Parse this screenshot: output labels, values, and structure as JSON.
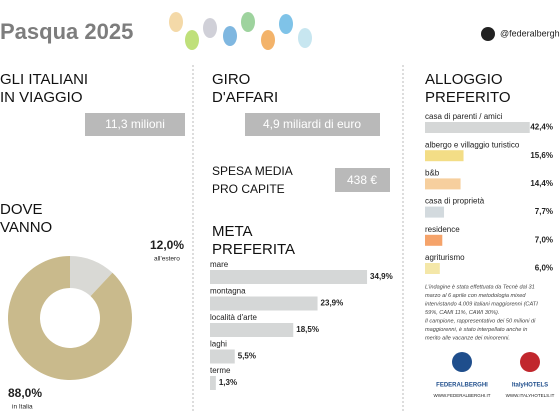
{
  "header": {
    "title": "Pasqua 2025",
    "handle": "@federalberghi"
  },
  "travelers": {
    "title_lines": [
      "GLI ITALIANI",
      "IN VIAGGIO"
    ],
    "value": "11,3 milioni"
  },
  "turnover": {
    "title_lines": [
      "GIRO",
      "D'AFFARI"
    ],
    "value": "4,9 miliardi di euro"
  },
  "spending": {
    "title_lines": [
      "SPESA MEDIA",
      "PRO CAPITE"
    ],
    "value": "438 €"
  },
  "chart_data": [
    {
      "type": "pie",
      "donut": true,
      "title_lines": [
        "DOVE",
        "VANNO"
      ],
      "categories": [
        "all'estero",
        "in Italia"
      ],
      "values": [
        12.0,
        88.0
      ],
      "value_labels": [
        "12,0%",
        "88,0%"
      ],
      "colors": [
        "#d9d9d5",
        "#c9ba8c"
      ]
    },
    {
      "type": "bar",
      "orientation": "horizontal",
      "title_lines": [
        "META",
        "PREFERITA"
      ],
      "categories": [
        "mare",
        "montagna",
        "località d'arte",
        "laghi",
        "terme"
      ],
      "values": [
        34.9,
        23.9,
        18.5,
        5.5,
        1.3
      ],
      "value_labels": [
        "34,9%",
        "23,9%",
        "18,5%",
        "5,5%",
        "1,3%"
      ],
      "color": "#d5d7d7"
    },
    {
      "type": "bar",
      "orientation": "horizontal",
      "title_lines": [
        "ALLOGGIO",
        "PREFERITO"
      ],
      "categories": [
        "casa di parenti / amici",
        "albergo e villaggio turistico",
        "b&b",
        "casa di proprietà",
        "residence",
        "agriturismo"
      ],
      "values": [
        42.4,
        15.6,
        14.4,
        7.7,
        7.0,
        6.0
      ],
      "value_labels": [
        "42,4%",
        "15,6%",
        "14,4%",
        "7,7%",
        "7,0%",
        "6,0%"
      ],
      "colors": [
        "#d5d7d7",
        "#f3dd86",
        "#f6cf9e",
        "#d3dade",
        "#f5a36a",
        "#f4e7a8"
      ]
    }
  ],
  "footnote": [
    "L'indagine è stata effettuata da Tecnè dal 31",
    "marzo al 6 aprile con metodologia mixed",
    "intervistando 4.009 italiani maggiorenni (CATI",
    "59%, CAMI 11%, CAWI 30%).",
    "Il campione, rappresentativo dei 50 milioni di",
    "maggiorenni, è stato interpellato anche in",
    "merito alle vacanze dei minorenni."
  ],
  "logos": [
    {
      "name": "FEDERALBERGHI",
      "url": "WWW.FEDERALBERGHI.IT"
    },
    {
      "name": "ItalyHOTELS",
      "url": "WWW.ITALYHOTELS.IT"
    }
  ]
}
